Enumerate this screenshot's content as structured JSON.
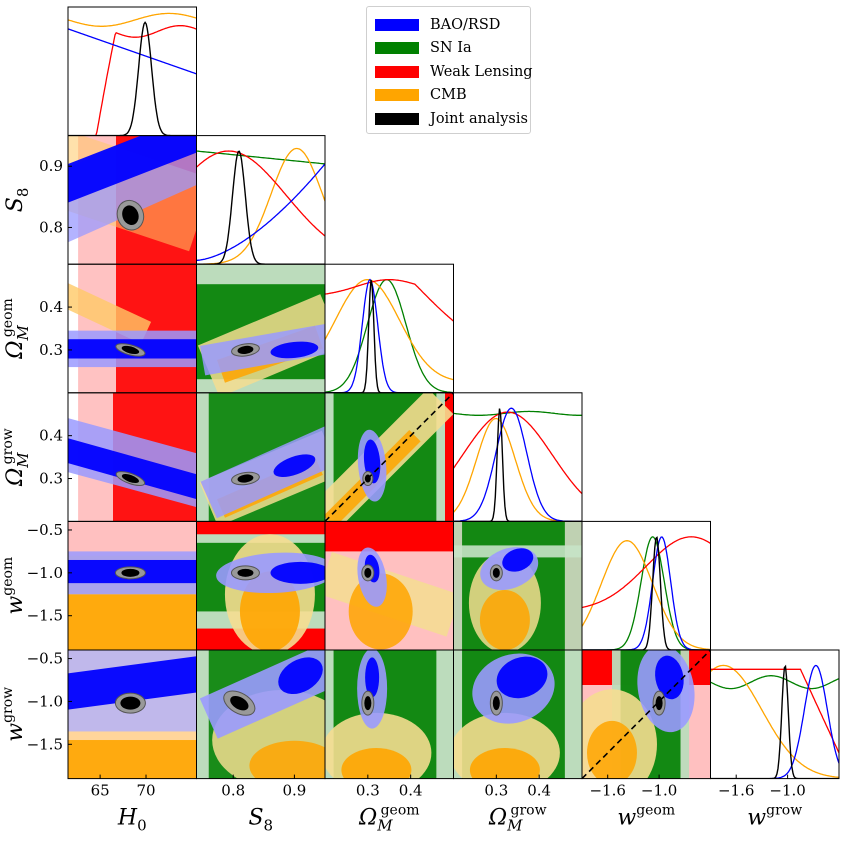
{
  "chart_data": {
    "type": "corner",
    "legend": [
      {
        "name": "BAO/RSD",
        "color": "#0000ff"
      },
      {
        "name": "SN Ia",
        "color": "#008000"
      },
      {
        "name": "Weak Lensing",
        "color": "#ff0000"
      },
      {
        "name": "CMB",
        "color": "#ffa500"
      },
      {
        "name": "Joint analysis",
        "color": "#000000"
      }
    ],
    "parameters": [
      {
        "key": "H0",
        "label": "H_0",
        "range": [
          61.5,
          75.5
        ],
        "ticks": [
          65,
          70
        ]
      },
      {
        "key": "S8",
        "label": "S_8",
        "range": [
          0.74,
          0.95
        ],
        "ticks": [
          0.8,
          0.9
        ]
      },
      {
        "key": "Omgeom",
        "label": "Ω_M^geom",
        "range": [
          0.2,
          0.5
        ],
        "ticks": [
          0.3,
          0.4
        ]
      },
      {
        "key": "Omgrow",
        "label": "Ω_M^grow",
        "range": [
          0.2,
          0.5
        ],
        "ticks": [
          0.3,
          0.4
        ]
      },
      {
        "key": "wgeom",
        "label": "w^geom",
        "range": [
          -1.9,
          -0.4
        ],
        "ticks": [
          -1.6,
          -1.0
        ]
      },
      {
        "key": "wgrow",
        "label": "w^grow",
        "range": [
          -1.9,
          -0.4
        ],
        "ticks": [
          -1.6,
          -1.0
        ]
      }
    ],
    "row_ticks": {
      "S8": [
        "0.8",
        "0.9"
      ],
      "Omgeom": [
        "0.3",
        "0.4"
      ],
      "Omgrow": [
        "0.3",
        "0.4"
      ],
      "wgeom": [
        "−0.5",
        "−1.0",
        "−1.5"
      ],
      "wgrow": [
        "−0.5",
        "−1.0",
        "−1.5"
      ]
    },
    "col_ticks": {
      "H0": [
        "65",
        "70"
      ],
      "S8": [
        "0.8",
        "0.9"
      ],
      "Omgeom": [
        "0.3",
        "0.4"
      ],
      "Omgrow": [
        "0.3",
        "0.4"
      ],
      "wgeom": [
        "−1.6",
        "−1.0"
      ],
      "wgrow": [
        "−1.6",
        "−1.0"
      ]
    },
    "joint_estimate": {
      "H0": 68.3,
      "S8": 0.82,
      "Omgeom": 0.3,
      "Omgrow": 0.3,
      "wgeom": -1.0,
      "wgrow": -1.02
    },
    "identity_line_panels": [
      "Omgrow-vs-Omgeom",
      "wgrow-vs-wgeom"
    ]
  }
}
